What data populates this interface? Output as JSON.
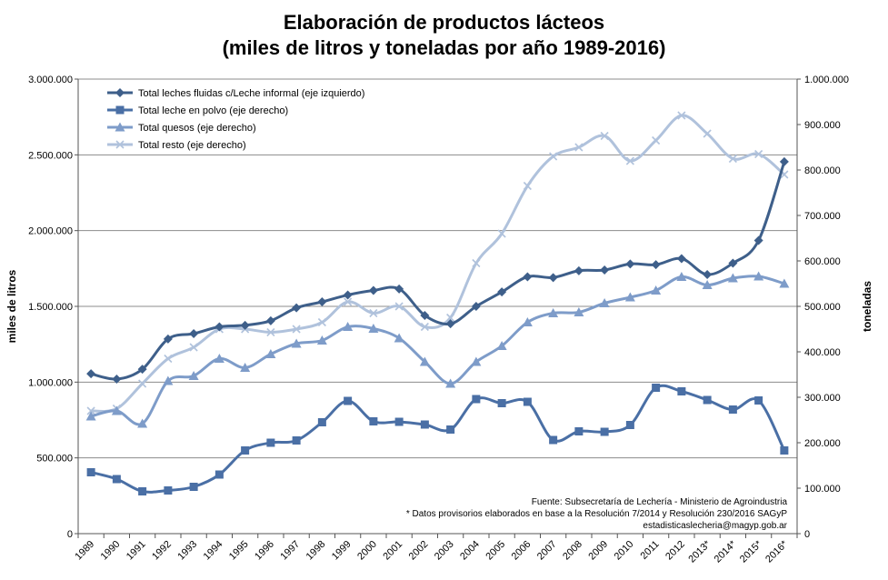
{
  "chart_data": {
    "type": "line",
    "title_lines": [
      "Elaboración de productos lácteos",
      "(miles de litros y toneladas por año 1989-2016)"
    ],
    "ylabel_left": "miles de litros",
    "ylabel_right": "toneladas",
    "x": [
      "1989",
      "1990",
      "1991",
      "1992",
      "1993",
      "1994",
      "1995",
      "1996",
      "1997",
      "1998",
      "1999",
      "2000",
      "2001",
      "2002",
      "2003",
      "2004",
      "2005",
      "2006",
      "2007",
      "2008",
      "2009",
      "2010",
      "2011",
      "2012",
      "2013*",
      "2014*",
      "2015*",
      "2016*"
    ],
    "ylim_left": [
      0,
      3000000
    ],
    "ylim_right": [
      0,
      1000000
    ],
    "left_ticks": [
      "0",
      "500.000",
      "1.000.000",
      "1.500.000",
      "2.000.000",
      "2.500.000",
      "3.000.000"
    ],
    "right_ticks": [
      "0",
      "100.000",
      "200.000",
      "300.000",
      "400.000",
      "500.000",
      "600.000",
      "700.000",
      "800.000",
      "900.000",
      "1.000.000"
    ],
    "grid": true,
    "legend_position": "top-left",
    "series": [
      {
        "name": "Total leches fluidas c/Leche informal (eje izquierdo)",
        "axis": "left",
        "color": "#3e5f8a",
        "marker": "diamond",
        "values": [
          1055000,
          1020000,
          1085000,
          1285000,
          1320000,
          1365000,
          1375000,
          1405000,
          1490000,
          1530000,
          1575000,
          1605000,
          1615000,
          1440000,
          1385000,
          1500000,
          1595000,
          1695000,
          1690000,
          1735000,
          1740000,
          1780000,
          1775000,
          1815000,
          1710000,
          1785000,
          1935000,
          2455000
        ]
      },
      {
        "name": "Total leche en polvo (eje derecho)",
        "axis": "right",
        "color": "#4a6fa5",
        "marker": "square",
        "values": [
          135000,
          120000,
          93000,
          95000,
          103000,
          130000,
          183000,
          200000,
          205000,
          245000,
          292000,
          247000,
          246000,
          240000,
          229000,
          296000,
          287000,
          290000,
          206000,
          225000,
          224000,
          239000,
          321000,
          313000,
          294000,
          273000,
          293000,
          183000
        ]
      },
      {
        "name": "Total quesos (eje derecho)",
        "axis": "right",
        "color": "#7e9cc9",
        "marker": "triangle",
        "values": [
          258000,
          270000,
          242000,
          336000,
          347000,
          385000,
          365000,
          395000,
          418000,
          425000,
          455000,
          451000,
          430000,
          378000,
          330000,
          378000,
          413000,
          465000,
          485000,
          487000,
          507000,
          520000,
          535000,
          565000,
          547000,
          562000,
          566000,
          550000
        ]
      },
      {
        "name": "Total resto (eje derecho)",
        "axis": "right",
        "color": "#b0c2dc",
        "marker": "x",
        "values": [
          270000,
          275000,
          330000,
          385000,
          410000,
          450000,
          450000,
          443000,
          450000,
          465000,
          510000,
          485000,
          500000,
          455000,
          475000,
          595000,
          660000,
          765000,
          830000,
          850000,
          875000,
          820000,
          865000,
          920000,
          880000,
          825000,
          835000,
          790000
        ]
      }
    ],
    "source_note": [
      "Fuente: Subsecretaría de Lechería - Ministerio de Agroindustria",
      "* Datos provisorios elaborados en base a la Resolución 7/2014 y Resolución 230/2016 SAGyP",
      "estadisticaslecheria@magyp.gob.ar"
    ]
  }
}
